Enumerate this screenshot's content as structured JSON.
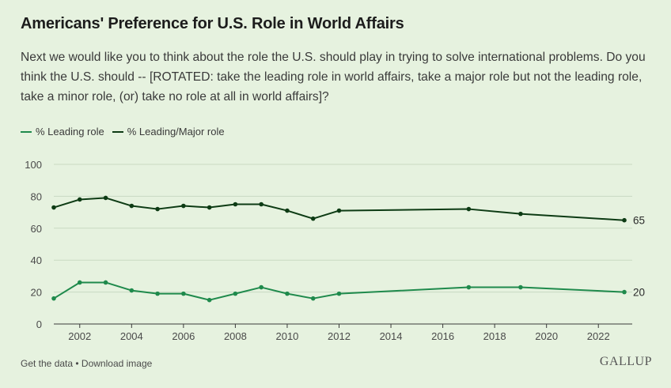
{
  "header": {
    "title": "Americans' Preference for U.S. Role in World Affairs",
    "subtitle": "Next we would like you to think about the role the U.S. should play in trying to solve international problems. Do you think the U.S. should -- [ROTATED: take the leading role in world affairs, take a major role but not the leading role, take a minor role, (or) take no role at all in world affairs]?"
  },
  "legend": {
    "items": [
      {
        "label": "% Leading role",
        "color": "#1f8a4c"
      },
      {
        "label": "% Leading/Major role",
        "color": "#0d3b14"
      }
    ]
  },
  "footer": {
    "get_data": "Get the data",
    "separator": " • ",
    "download": "Download image",
    "brand": "GALLUP"
  },
  "chart_data": {
    "type": "line",
    "x": [
      2001,
      2002,
      2003,
      2004,
      2005,
      2006,
      2007,
      2008,
      2009,
      2010,
      2011,
      2012,
      2017,
      2019,
      2023
    ],
    "series": [
      {
        "name": "% Leading/Major role",
        "color": "#0d3b14",
        "values": [
          73,
          78,
          79,
          74,
          72,
          74,
          73,
          75,
          75,
          71,
          66,
          71,
          72,
          69,
          65
        ],
        "end_label": "65"
      },
      {
        "name": "% Leading role",
        "color": "#1f8a4c",
        "values": [
          16,
          26,
          26,
          21,
          19,
          19,
          15,
          19,
          23,
          19,
          16,
          19,
          23,
          23,
          20
        ],
        "end_label": "20"
      }
    ],
    "xticks": [
      "2002",
      "2004",
      "2006",
      "2008",
      "2010",
      "2012",
      "2014",
      "2016",
      "2018",
      "2020",
      "2022"
    ],
    "yticks": [
      "0",
      "20",
      "40",
      "60",
      "80",
      "100"
    ],
    "xlim": [
      2001,
      2023
    ],
    "ylim": [
      0,
      100
    ],
    "grid": true
  }
}
